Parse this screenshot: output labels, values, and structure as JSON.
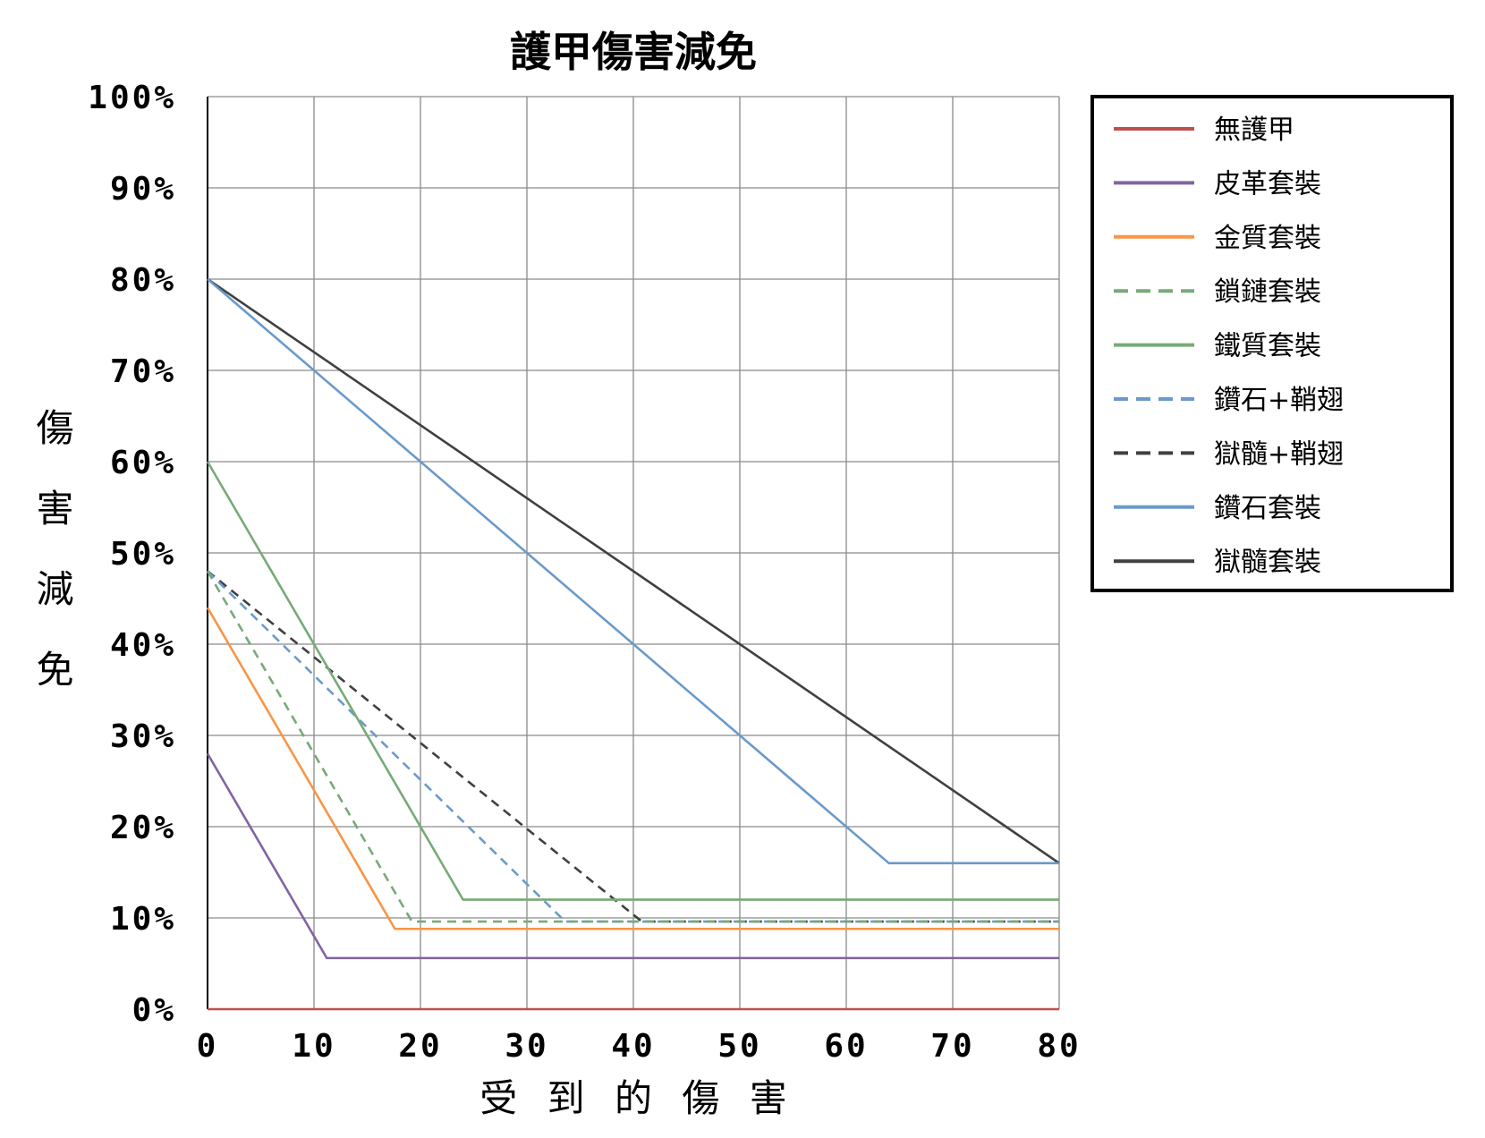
{
  "chart_data": {
    "type": "line",
    "title": "護甲傷害減免",
    "xlabel": "受 到 的 傷 害",
    "ylabel": "傷害減免",
    "xlim": [
      0,
      80
    ],
    "ylim": [
      0,
      100
    ],
    "xticks": [
      "0",
      "10",
      "20",
      "30",
      "40",
      "50",
      "60",
      "70",
      "80"
    ],
    "yticks": [
      "0%",
      "10%",
      "20%",
      "30%",
      "40%",
      "50%",
      "60%",
      "70%",
      "80%",
      "90%",
      "100%"
    ],
    "grid": true,
    "legend": "right",
    "series": [
      {
        "name": "無護甲",
        "color": "#c0504d",
        "line_style": "solid",
        "points": [
          [
            0,
            0
          ],
          [
            80,
            0
          ]
        ]
      },
      {
        "name": "皮革套裝",
        "color": "#8064a2",
        "line_style": "solid",
        "points": [
          [
            0,
            28
          ],
          [
            11.2,
            5.6
          ],
          [
            80,
            5.6
          ]
        ]
      },
      {
        "name": "金質套裝",
        "color": "#f79646",
        "line_style": "solid",
        "points": [
          [
            0,
            44
          ],
          [
            17.6,
            8.8
          ],
          [
            80,
            8.8
          ]
        ]
      },
      {
        "name": "鎖鏈套裝",
        "color": "#77aa77",
        "line_style": "dashed",
        "points": [
          [
            0,
            48
          ],
          [
            19.2,
            9.6
          ],
          [
            80,
            9.6
          ]
        ]
      },
      {
        "name": "鐵質套裝",
        "color": "#77aa77",
        "line_style": "solid",
        "points": [
          [
            0,
            60
          ],
          [
            24,
            12
          ],
          [
            80,
            12
          ]
        ]
      },
      {
        "name": "鑽石+鞘翅",
        "color": "#6a9acb",
        "line_style": "dashed",
        "points": [
          [
            0,
            48
          ],
          [
            33.6,
            9.6
          ],
          [
            80,
            9.6
          ]
        ]
      },
      {
        "name": "獄髓+鞘翅",
        "color": "#404040",
        "line_style": "dashed",
        "points": [
          [
            0,
            48
          ],
          [
            40.8,
            9.6
          ],
          [
            80,
            9.6
          ]
        ]
      },
      {
        "name": "鑽石套裝",
        "color": "#6a9acb",
        "line_style": "solid",
        "points": [
          [
            0,
            80
          ],
          [
            64,
            16
          ],
          [
            80,
            16
          ]
        ]
      },
      {
        "name": "獄髓套裝",
        "color": "#404040",
        "line_style": "solid",
        "points": [
          [
            0,
            80
          ],
          [
            80,
            16
          ]
        ]
      }
    ]
  }
}
